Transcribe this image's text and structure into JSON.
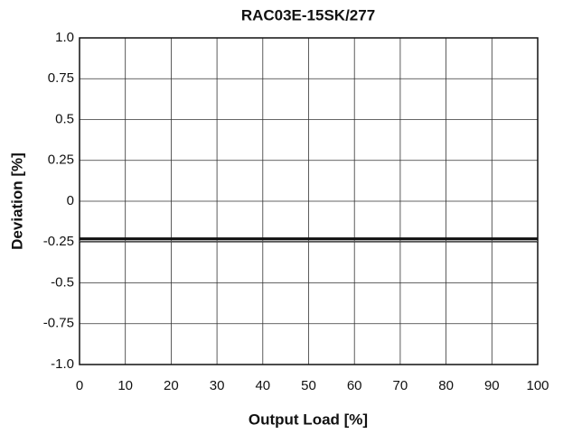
{
  "chart_data": {
    "type": "line",
    "title": "RAC03E-15SK/277",
    "x_label": "Output Load [%]",
    "y_label": "Deviation [%]",
    "x": [
      0,
      100
    ],
    "series": [
      {
        "color": "#111111",
        "values": [
          -0.23,
          -0.23
        ]
      },
      {
        "color": "#555555",
        "values": [
          -0.245,
          -0.245
        ]
      }
    ],
    "xlim": [
      0,
      100
    ],
    "xticks": [
      0,
      10,
      20,
      30,
      40,
      50,
      60,
      70,
      80,
      90,
      100
    ],
    "ylim": [
      -1,
      1
    ],
    "yticks": [
      {
        "value": 1,
        "label": "1.0"
      },
      0.75,
      0.5,
      0.25,
      0,
      -0.25,
      -0.5,
      -0.75,
      {
        "value": -1,
        "label": "-1.0"
      }
    ],
    "grid": true
  }
}
